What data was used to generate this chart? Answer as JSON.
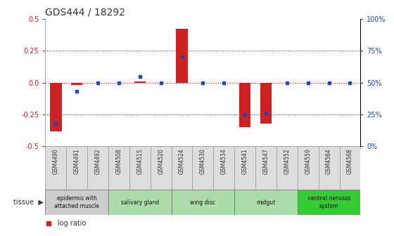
{
  "title": "GDS444 / 18292",
  "samples": [
    "GSM4490",
    "GSM4491",
    "GSM4492",
    "GSM4508",
    "GSM4515",
    "GSM4520",
    "GSM4524",
    "GSM4530",
    "GSM4534",
    "GSM4541",
    "GSM4547",
    "GSM4552",
    "GSM4559",
    "GSM4564",
    "GSM4568"
  ],
  "log_ratio": [
    -0.38,
    -0.02,
    0.0,
    0.0,
    0.01,
    0.0,
    0.42,
    0.0,
    0.0,
    -0.35,
    -0.32,
    0.0,
    0.0,
    0.0,
    0.0
  ],
  "percentile": [
    18,
    43,
    50,
    50,
    55,
    50,
    70,
    50,
    50,
    25,
    26,
    50,
    50,
    50,
    50
  ],
  "ylim": [
    -0.5,
    0.5
  ],
  "yticks_left": [
    -0.5,
    -0.25,
    0.0,
    0.25,
    0.5
  ],
  "yticks_right": [
    0,
    25,
    50,
    75,
    100
  ],
  "hline_zero_color": "#dd2222",
  "hline_dotted_color": "#333333",
  "bar_color": "#cc2222",
  "dot_color": "#2244cc",
  "tissue_groups": [
    {
      "label": "epidermis with\nattached muscle",
      "start": 0,
      "end": 3,
      "color": "#cccccc"
    },
    {
      "label": "salivary gland",
      "start": 3,
      "end": 6,
      "color": "#aaddaa"
    },
    {
      "label": "wing disc",
      "start": 6,
      "end": 9,
      "color": "#aaddaa"
    },
    {
      "label": "midgut",
      "start": 9,
      "end": 12,
      "color": "#aaddaa"
    },
    {
      "label": "central nervous\nsystem",
      "start": 12,
      "end": 15,
      "color": "#33cc33"
    }
  ],
  "bar_width": 0.55,
  "title_color": "#333333",
  "left_axis_color": "#cc2222",
  "right_axis_color": "#2244cc",
  "bg_color": "#ffffff",
  "plot_bg_color": "#ffffff"
}
